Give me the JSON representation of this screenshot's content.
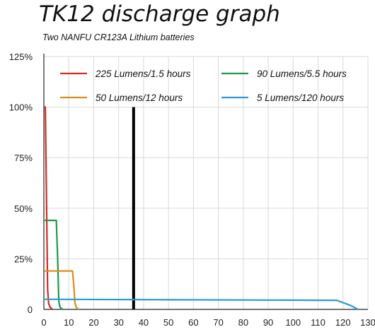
{
  "title": "TK12 discharge graph",
  "subtitle": "Two NANFU CR123A Lithium batteries",
  "chart_data": {
    "type": "line",
    "title": "TK12 discharge graph",
    "subtitle": "Two NANFU CR123A Lithium batteries",
    "xlabel": "",
    "ylabel": "",
    "xlim": [
      0,
      130
    ],
    "ylim": [
      0,
      125
    ],
    "x_ticks": [
      0,
      10,
      20,
      30,
      40,
      50,
      60,
      70,
      80,
      90,
      100,
      110,
      120,
      130
    ],
    "x_tick_labels": [
      "0",
      "10",
      "20",
      "30",
      "40",
      "50",
      "60",
      "70",
      "80",
      "90",
      "100",
      "110",
      "120",
      "130"
    ],
    "y_ticks": [
      0,
      25,
      50,
      75,
      100,
      125
    ],
    "y_tick_labels": [
      "0",
      "25%",
      "50%",
      "75%",
      "100%",
      "125%"
    ],
    "grid": true,
    "legend_position": "top",
    "series": [
      {
        "name": "225 Lumens/1.5 hours",
        "color": "#d42a24",
        "points": [
          [
            0.2,
            100
          ],
          [
            0.6,
            100
          ],
          [
            1.5,
            10
          ],
          [
            1.9,
            3
          ],
          [
            2.5,
            1
          ],
          [
            3.5,
            0
          ]
        ]
      },
      {
        "name": "90 Lumens/5.5 hours",
        "color": "#1e9a48",
        "points": [
          [
            0.3,
            44
          ],
          [
            5.0,
            44
          ],
          [
            5.5,
            26
          ],
          [
            6.0,
            4
          ],
          [
            6.5,
            1
          ],
          [
            7.5,
            0
          ]
        ]
      },
      {
        "name": "50 Lumens/12 hours",
        "color": "#e08a1e",
        "points": [
          [
            0.3,
            19
          ],
          [
            11.5,
            19
          ],
          [
            12.0,
            12
          ],
          [
            12.5,
            3
          ],
          [
            13.0,
            1
          ],
          [
            14.0,
            0
          ]
        ]
      },
      {
        "name": "5 Lumens/120 hours",
        "color": "#2a9ad6",
        "points": [
          [
            0.3,
            5
          ],
          [
            116,
            4.5
          ],
          [
            117.5,
            4.5
          ],
          [
            123,
            2
          ],
          [
            126,
            0
          ]
        ]
      }
    ],
    "reference_line": {
      "x": 36,
      "y_top": 100,
      "color": "#000000"
    }
  }
}
